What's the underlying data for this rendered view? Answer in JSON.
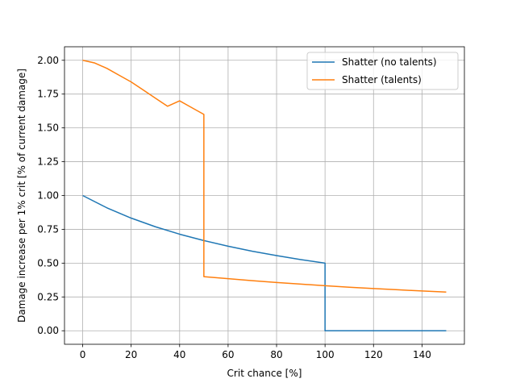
{
  "chart_data": {
    "type": "line",
    "title": "",
    "xlabel": "Crit chance [%]",
    "ylabel": "Damage increase per 1% crit [% of current damage]",
    "xlim": [
      -7.5,
      157.5
    ],
    "ylim": [
      -0.1,
      2.1
    ],
    "xticks": [
      0,
      20,
      40,
      60,
      80,
      100,
      120,
      140
    ],
    "yticks": [
      0.0,
      0.25,
      0.5,
      0.75,
      1.0,
      1.25,
      1.5,
      1.75,
      2.0
    ],
    "ytick_labels": [
      "0.00",
      "0.25",
      "0.50",
      "0.75",
      "1.00",
      "1.25",
      "1.50",
      "1.75",
      "2.00"
    ],
    "grid": true,
    "legend_position": "top-right",
    "series": [
      {
        "name": "Shatter (no talents)",
        "color": "#1f77b4",
        "x": [
          0,
          10,
          20,
          30,
          40,
          50,
          60,
          70,
          80,
          90,
          100,
          100,
          110,
          120,
          130,
          140,
          150
        ],
        "y": [
          1.0,
          0.909,
          0.833,
          0.769,
          0.714,
          0.667,
          0.625,
          0.588,
          0.556,
          0.526,
          0.5,
          0.0,
          0.0,
          0.0,
          0.0,
          0.0,
          0.0
        ]
      },
      {
        "name": "Shatter (talents)",
        "color": "#ff7f0e",
        "x": [
          0,
          5,
          10,
          15,
          20,
          25,
          30,
          35,
          40,
          45,
          50,
          50,
          60,
          70,
          80,
          90,
          100,
          110,
          120,
          130,
          140,
          150
        ],
        "y": [
          2.0,
          1.98,
          1.94,
          1.89,
          1.84,
          1.78,
          1.72,
          1.66,
          1.7,
          1.65,
          1.6,
          0.4,
          0.385,
          0.37,
          0.357,
          0.345,
          0.333,
          0.322,
          0.312,
          0.303,
          0.294,
          0.286
        ]
      }
    ]
  }
}
